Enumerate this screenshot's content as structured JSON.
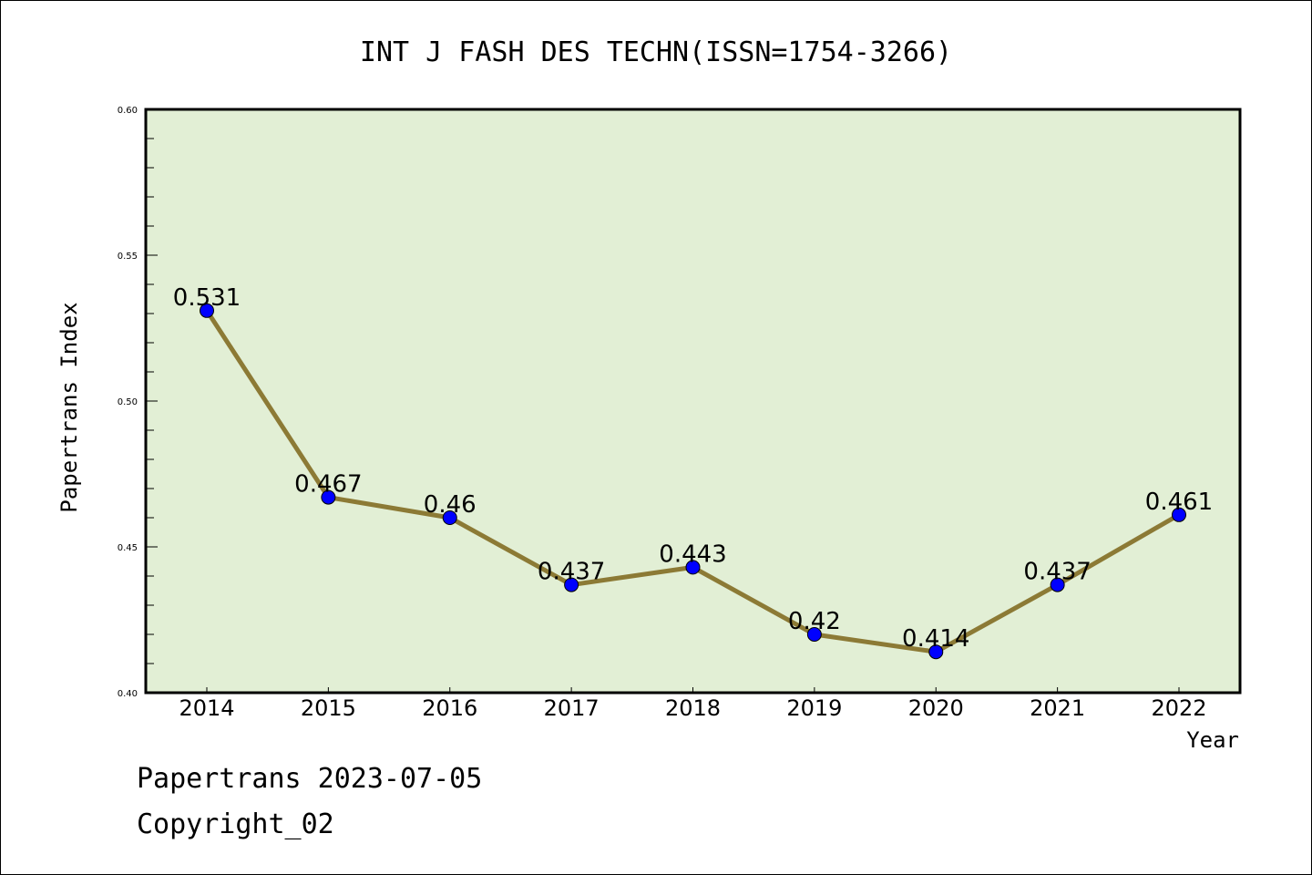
{
  "chart_data": {
    "type": "line",
    "title": "INT J FASH DES TECHN(ISSN=1754-3266)",
    "xlabel": "Year",
    "ylabel": "Papertrans Index",
    "categories": [
      "2014",
      "2015",
      "2016",
      "2017",
      "2018",
      "2019",
      "2020",
      "2021",
      "2022"
    ],
    "series": [
      {
        "name": "Papertrans Index",
        "values": [
          0.531,
          0.467,
          0.46,
          0.437,
          0.443,
          0.42,
          0.414,
          0.437,
          0.461
        ],
        "labels": [
          "0.531",
          "0.467",
          "0.46",
          "0.437",
          "0.443",
          "0.42",
          "0.414",
          "0.437",
          "0.461"
        ],
        "line_color": "#8c7a35",
        "marker_color": "#0000ff"
      }
    ],
    "ylim": [
      0.4,
      0.6
    ],
    "yticks": [
      "0.40",
      "0.45",
      "0.50",
      "0.55",
      "0.60"
    ],
    "ytick_values": [
      0.4,
      0.45,
      0.5,
      0.55,
      0.6
    ],
    "yminor_step": 0.01,
    "grid": false,
    "plot_background": "#e2efd5"
  },
  "footer": {
    "line1": "Papertrans 2023-07-05",
    "line2": "Copyright_02"
  }
}
